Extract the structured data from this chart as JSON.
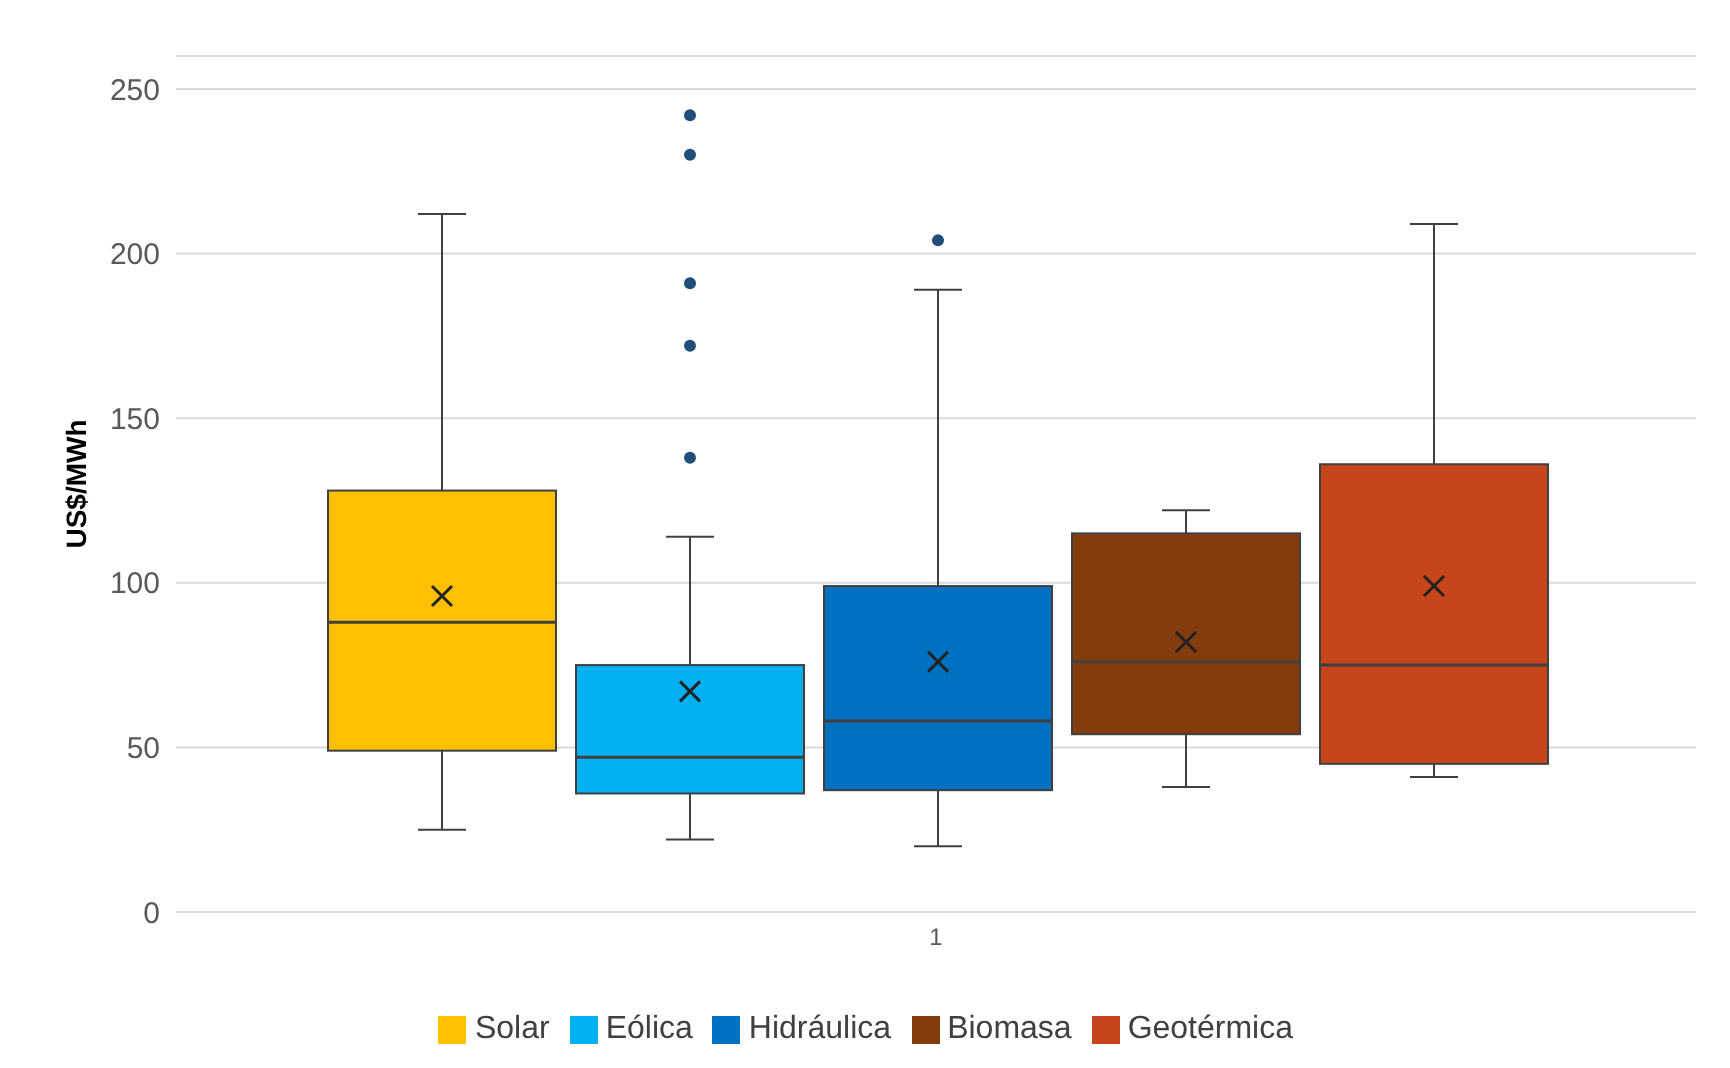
{
  "chart_data": {
    "type": "box",
    "categories": [
      "1"
    ],
    "ylabel": "US$/MWh",
    "ylim": [
      0,
      260
    ],
    "yticks": [
      0,
      50,
      100,
      150,
      200,
      250
    ],
    "grid": "y",
    "legend": "bottom",
    "series": [
      {
        "name": "Solar",
        "color": "#ffc000",
        "boxes": [
          {
            "low": 25,
            "q1": 49,
            "median": 88,
            "q3": 128,
            "high": 212,
            "mean": 96
          }
        ]
      },
      {
        "name": "Eólica",
        "color": "#00b0f0",
        "boxes": [
          {
            "low": 22,
            "q1": 36,
            "median": 47,
            "q3": 75,
            "high": 114,
            "mean": 67,
            "outliers": [
              138,
              172,
              191,
              230,
              242
            ]
          }
        ]
      },
      {
        "name": "Hidráulica",
        "color": "#0070c0",
        "boxes": [
          {
            "low": 20,
            "q1": 37,
            "median": 58,
            "q3": 99,
            "high": 189,
            "mean": 76,
            "outliers": [
              204
            ]
          }
        ]
      },
      {
        "name": "Biomasa",
        "color": "#843c0c",
        "boxes": [
          {
            "low": 38,
            "q1": 54,
            "median": 76,
            "q3": 115,
            "high": 122,
            "mean": 82
          }
        ]
      },
      {
        "name": "Geotérmica",
        "color": "#c5461a",
        "boxes": [
          {
            "low": 41,
            "q1": 45,
            "median": 75,
            "q3": 136,
            "high": 209,
            "mean": 99
          }
        ]
      }
    ]
  }
}
